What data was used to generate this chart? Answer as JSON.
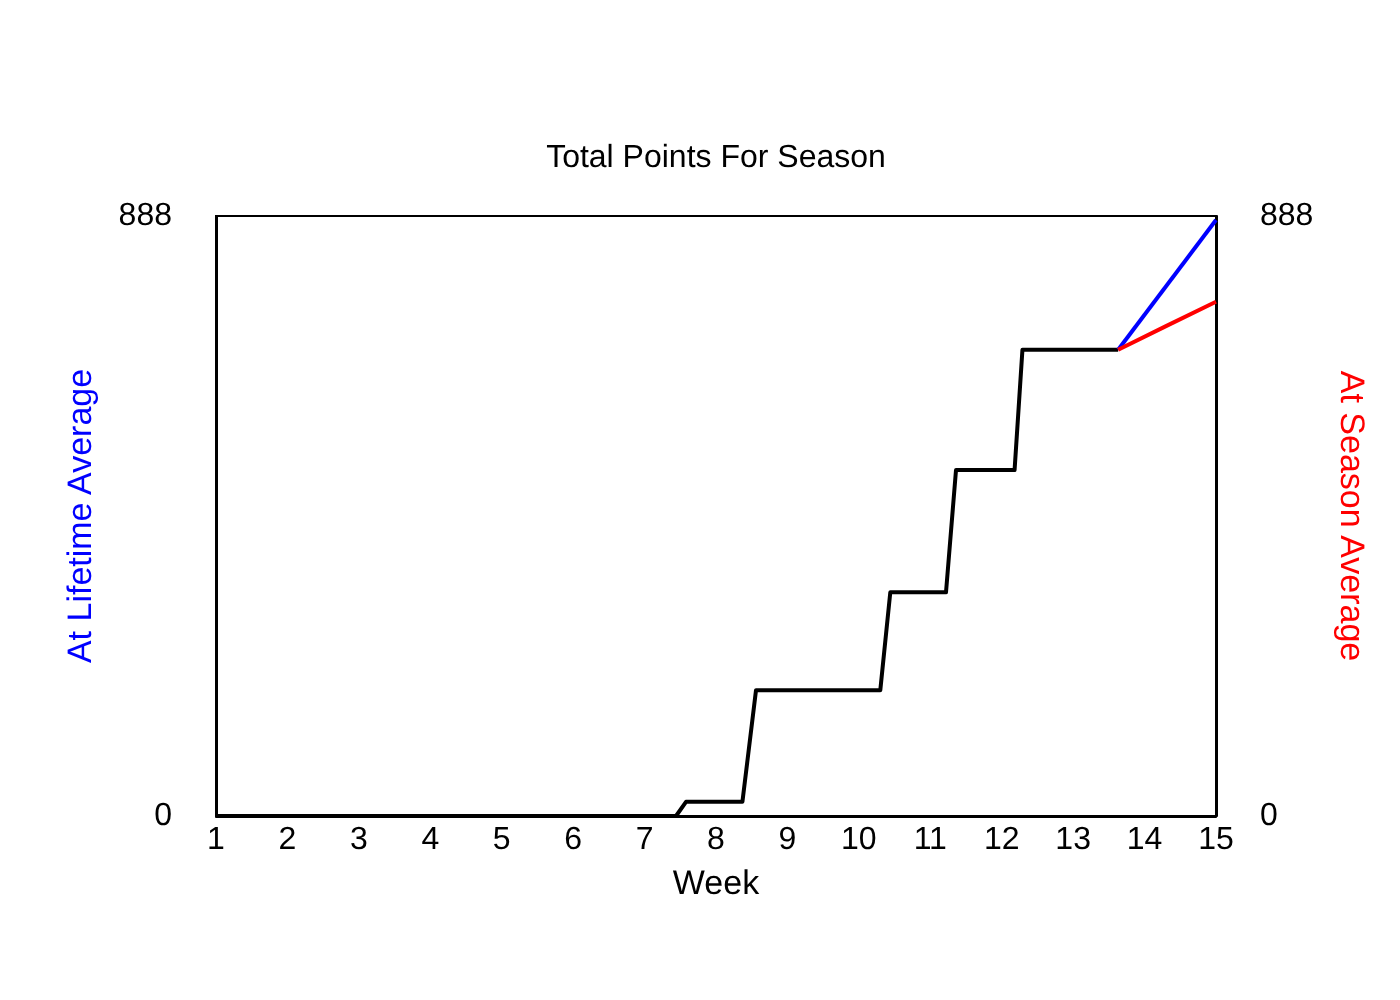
{
  "chart_data": {
    "type": "line",
    "title": "Total Points For Season",
    "xlabel": "Week",
    "ylabel": "At Lifetime Average",
    "y2label": "At Season Average",
    "xlim": [
      1,
      15
    ],
    "xticks": [
      1,
      2,
      3,
      4,
      5,
      6,
      7,
      8,
      9,
      10,
      11,
      12,
      13,
      14,
      15
    ],
    "ylim": [
      0,
      888
    ],
    "yticks": [
      0,
      888
    ],
    "y2lim": [
      0,
      888
    ],
    "y2ticks": [
      0,
      888
    ],
    "series": [
      {
        "color": "#000000",
        "x": [
          1,
          7.44,
          7.58,
          8.37,
          8.56,
          10.3,
          10.44,
          11.22,
          11.36,
          12.18,
          12.29,
          13.63
        ],
        "values": [
          0,
          0,
          21,
          21,
          186,
          186,
          331,
          331,
          512,
          512,
          690,
          690
        ]
      },
      {
        "color": "#0000ff",
        "axis": "y",
        "x": [
          13.63,
          15
        ],
        "values": [
          690,
          882
        ]
      },
      {
        "color": "#ff0000",
        "axis": "y2",
        "x": [
          13.63,
          14.3,
          15
        ],
        "values": [
          690,
          725,
          761
        ]
      }
    ]
  }
}
